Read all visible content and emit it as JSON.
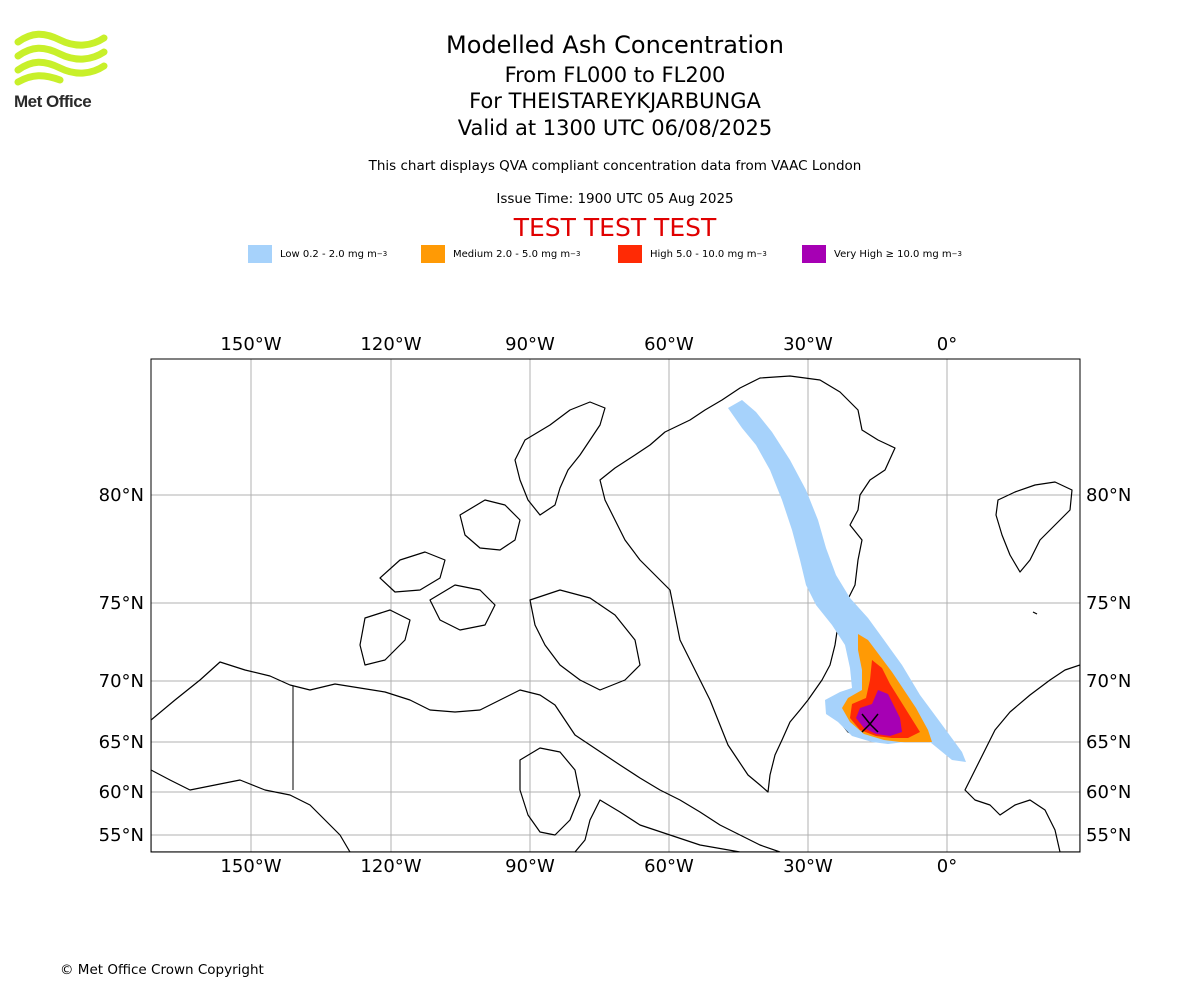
{
  "header": {
    "title": "Modelled Ash Concentration",
    "line2": "From FL000 to FL200",
    "line3": "For THEISTAREYKJARBUNGA",
    "line4": "Valid at 1300 UTC 06/08/2025",
    "description": "This chart displays QVA compliant concentration data from VAAC London",
    "issue_time": "Issue Time: 1900 UTC 05 Aug 2025",
    "test_banner": "TEST TEST TEST"
  },
  "logo": {
    "text": "Met Office",
    "color": "#c8f02a"
  },
  "legend": [
    {
      "label": "Low 0.2 - 2.0 mg m",
      "color": "#a6d2fb"
    },
    {
      "label": "Medium 2.0 - 5.0 mg m",
      "color": "#ff9a05"
    },
    {
      "label": "High 5.0 - 10.0 mg m",
      "color": "#ff2a05"
    },
    {
      "label": "Very High ≥ 10.0 mg m",
      "color": "#a600b4"
    }
  ],
  "legend_unit_exponent": "−3",
  "map": {
    "lon_labels": [
      "150°W",
      "120°W",
      "90°W",
      "60°W",
      "30°W",
      "0°"
    ],
    "lat_labels": [
      "80°N",
      "75°N",
      "70°N",
      "65°N",
      "60°N",
      "55°N"
    ]
  },
  "footer": {
    "copyright": "© Met Office Crown Copyright"
  }
}
